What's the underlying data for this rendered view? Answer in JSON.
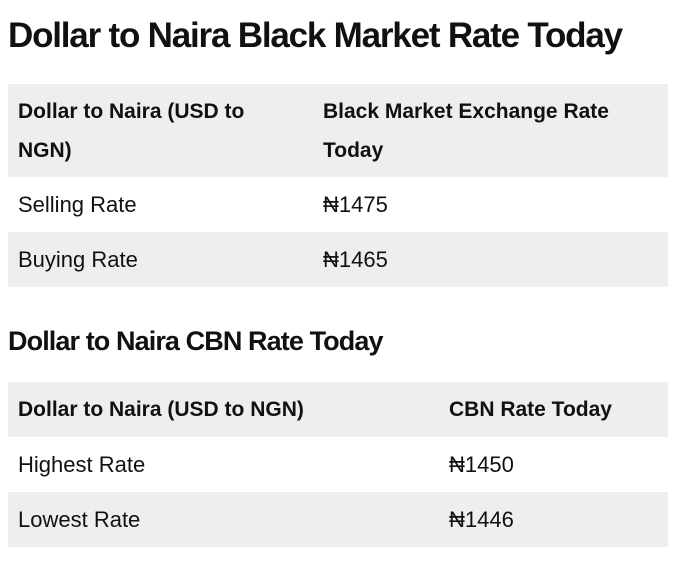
{
  "black_market": {
    "title": "Dollar to Naira Black Market Rate Today",
    "headers": [
      "Dollar to Naira (USD to NGN)",
      "Black Market Exchange Rate Today"
    ],
    "rows": [
      {
        "label": "Selling Rate",
        "value": "₦1475"
      },
      {
        "label": "Buying Rate",
        "value": "₦1465"
      }
    ]
  },
  "cbn": {
    "title": "Dollar to Naira CBN Rate Today",
    "headers": [
      "Dollar to Naira (USD to NGN)",
      "CBN Rate Today"
    ],
    "rows": [
      {
        "label": "Highest Rate",
        "value": "₦1450"
      },
      {
        "label": "Lowest Rate",
        "value": "₦1446"
      }
    ]
  },
  "colors": {
    "header_bg": "#eeeeee",
    "stripe_bg": "#eeeeee",
    "text": "#111111"
  }
}
